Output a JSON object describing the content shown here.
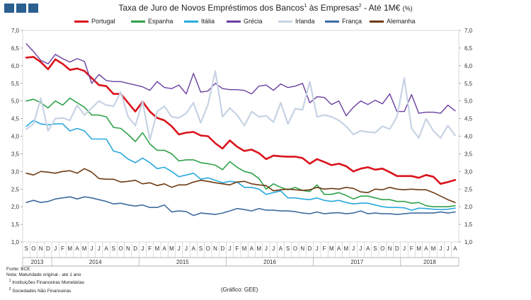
{
  "header": {
    "title_main": "Taxa de Juro de Novos Empréstimos dos Bancos",
    "title_sup1": "1",
    "title_mid": " às Empresas",
    "title_sup2": "2",
    "title_end": " - Até 1M€ ",
    "title_unit": "(%)"
  },
  "logo_color": "#2b5f8f",
  "chart_data": {
    "type": "line",
    "ylim": [
      1.0,
      7.0
    ],
    "yticks": [
      "1,0",
      "1,5",
      "2,0",
      "2,5",
      "3,0",
      "3,5",
      "4,0",
      "4,5",
      "5,0",
      "5,5",
      "6,0",
      "6,5",
      "7,0"
    ],
    "month_labels": [
      "S",
      "O",
      "N",
      "D",
      "J",
      "F",
      "M",
      "A",
      "M",
      "J",
      "J",
      "A",
      "S",
      "O",
      "N",
      "D",
      "J",
      "F",
      "M",
      "A",
      "M",
      "J",
      "J",
      "A",
      "S",
      "O",
      "N",
      "D",
      "J",
      "F",
      "M",
      "A",
      "M",
      "J",
      "J",
      "A",
      "S",
      "O",
      "N",
      "D",
      "J",
      "F",
      "M",
      "A",
      "M",
      "J",
      "J",
      "A",
      "S",
      "O",
      "N",
      "D",
      "J",
      "F",
      "M",
      "A",
      "M",
      "J",
      "J",
      "A"
    ],
    "years": [
      {
        "label": "2013",
        "start": 0,
        "end": 3
      },
      {
        "label": "2014",
        "start": 4,
        "end": 15
      },
      {
        "label": "2015",
        "start": 16,
        "end": 27
      },
      {
        "label": "2016",
        "start": 28,
        "end": 39
      },
      {
        "label": "2017",
        "start": 40,
        "end": 51
      },
      {
        "label": "2018",
        "start": 52,
        "end": 59
      }
    ],
    "series": [
      {
        "name": "Portugal",
        "color": "#d9131b",
        "width": 2.6,
        "values": [
          6.23,
          6.25,
          6.1,
          5.9,
          6.18,
          6.05,
          5.88,
          5.92,
          5.85,
          5.65,
          5.45,
          5.42,
          5.2,
          5.2,
          4.95,
          4.7,
          4.98,
          4.7,
          4.52,
          4.45,
          4.28,
          4.05,
          4.1,
          4.12,
          4.02,
          4.0,
          3.8,
          3.65,
          3.88,
          3.7,
          3.58,
          3.62,
          3.52,
          3.35,
          3.45,
          3.43,
          3.42,
          3.42,
          3.38,
          3.22,
          3.35,
          3.27,
          3.18,
          3.22,
          3.15,
          3.0,
          3.08,
          3.12,
          3.05,
          3.08,
          2.98,
          2.87,
          2.87,
          2.87,
          2.82,
          2.9,
          2.85,
          2.65,
          2.7,
          2.76
        ]
      },
      {
        "name": "Espanha",
        "color": "#2fa24a",
        "width": 1.6,
        "values": [
          5.0,
          5.05,
          4.95,
          4.8,
          5.0,
          4.88,
          5.08,
          4.95,
          4.82,
          4.6,
          4.6,
          4.55,
          4.25,
          4.22,
          4.05,
          3.85,
          4.1,
          3.78,
          3.6,
          3.6,
          3.5,
          3.3,
          3.33,
          3.33,
          3.25,
          3.22,
          3.18,
          3.05,
          3.28,
          3.12,
          3.0,
          2.95,
          2.8,
          2.5,
          2.65,
          2.55,
          2.48,
          2.55,
          2.46,
          2.43,
          2.62,
          2.35,
          2.35,
          2.4,
          2.32,
          2.22,
          2.3,
          2.3,
          2.25,
          2.2,
          2.2,
          2.15,
          2.15,
          2.1,
          2.12,
          2.03,
          2.0,
          2.0,
          2.0,
          2.03
        ]
      },
      {
        "name": "Itália",
        "color": "#29a9dc",
        "width": 1.6,
        "values": [
          4.28,
          4.45,
          4.35,
          4.32,
          4.35,
          4.35,
          4.15,
          4.22,
          4.15,
          3.92,
          3.92,
          3.92,
          3.58,
          3.52,
          3.35,
          3.25,
          3.38,
          3.25,
          3.08,
          3.12,
          3.0,
          2.85,
          2.9,
          2.95,
          2.78,
          2.82,
          2.75,
          2.68,
          2.72,
          2.7,
          2.55,
          2.55,
          2.5,
          2.35,
          2.4,
          2.45,
          2.25,
          2.25,
          2.22,
          2.2,
          2.25,
          2.18,
          2.15,
          2.18,
          2.12,
          2.08,
          2.1,
          2.1,
          2.05,
          2.0,
          1.98,
          1.98,
          1.97,
          1.9,
          1.96,
          1.95,
          1.93,
          1.92,
          1.93,
          1.96
        ]
      },
      {
        "name": "Grécia",
        "color": "#6b3fa0",
        "width": 1.4,
        "values": [
          6.62,
          6.4,
          6.15,
          6.05,
          6.32,
          6.2,
          6.1,
          6.2,
          6.12,
          5.5,
          5.75,
          5.58,
          5.55,
          5.55,
          5.5,
          5.45,
          5.4,
          5.3,
          5.55,
          5.38,
          5.35,
          5.45,
          5.2,
          5.78,
          5.25,
          5.28,
          5.5,
          5.35,
          5.32,
          5.32,
          5.3,
          5.2,
          5.42,
          5.45,
          5.3,
          5.48,
          5.38,
          5.42,
          5.5,
          4.95,
          5.12,
          5.1,
          4.9,
          5.0,
          4.58,
          4.82,
          5.0,
          4.9,
          5.02,
          4.92,
          5.2,
          4.7,
          4.7,
          5.18,
          4.65,
          4.68,
          4.68,
          4.65,
          4.88,
          4.72
        ]
      },
      {
        "name": "Irlanda",
        "color": "#c7d3e3",
        "width": 2.2,
        "values": [
          4.2,
          4.35,
          5.08,
          4.15,
          4.5,
          4.52,
          4.45,
          4.88,
          4.6,
          4.8,
          5.0,
          4.88,
          4.85,
          5.25,
          4.55,
          4.3,
          4.98,
          3.9,
          4.7,
          4.85,
          4.55,
          4.52,
          4.65,
          4.95,
          4.38,
          4.9,
          5.85,
          4.55,
          4.8,
          4.6,
          4.3,
          4.7,
          4.55,
          4.58,
          4.4,
          4.95,
          4.35,
          4.78,
          4.75,
          5.55,
          4.55,
          4.6,
          4.55,
          4.45,
          4.28,
          4.05,
          4.15,
          4.12,
          4.1,
          4.28,
          4.2,
          4.55,
          5.65,
          4.22,
          3.95,
          4.5,
          4.15,
          3.95,
          4.3,
          4.02
        ]
      },
      {
        "name": "França",
        "color": "#3e6c9e",
        "width": 1.6,
        "values": [
          2.12,
          2.18,
          2.12,
          2.15,
          2.22,
          2.25,
          2.28,
          2.22,
          2.28,
          2.25,
          2.2,
          2.15,
          2.08,
          2.1,
          2.05,
          2.02,
          2.05,
          1.98,
          1.98,
          2.05,
          1.85,
          1.88,
          1.86,
          1.75,
          1.82,
          1.8,
          1.78,
          1.82,
          1.88,
          1.95,
          1.92,
          1.88,
          1.95,
          1.9,
          1.9,
          1.88,
          1.88,
          1.86,
          1.82,
          1.8,
          1.85,
          1.8,
          1.82,
          1.83,
          1.8,
          1.82,
          1.88,
          1.8,
          1.82,
          1.8,
          1.8,
          1.78,
          1.8,
          1.82,
          1.82,
          1.82,
          1.82,
          1.85,
          1.82,
          1.85
        ]
      },
      {
        "name": "Alemanha",
        "color": "#6e3b12",
        "width": 1.6,
        "values": [
          2.95,
          2.9,
          3.0,
          2.98,
          2.95,
          3.0,
          3.02,
          2.95,
          3.08,
          2.98,
          2.8,
          2.78,
          2.78,
          2.7,
          2.72,
          2.75,
          2.65,
          2.68,
          2.6,
          2.65,
          2.55,
          2.62,
          2.62,
          2.7,
          2.75,
          2.72,
          2.68,
          2.65,
          2.62,
          2.7,
          2.72,
          2.65,
          2.62,
          2.6,
          2.45,
          2.48,
          2.5,
          2.48,
          2.46,
          2.48,
          2.55,
          2.5,
          2.52,
          2.5,
          2.55,
          2.52,
          2.42,
          2.4,
          2.5,
          2.48,
          2.55,
          2.5,
          2.48,
          2.5,
          2.48,
          2.48,
          2.4,
          2.3,
          2.2,
          2.12
        ]
      }
    ]
  },
  "footer": {
    "source": "Fonte: BCE",
    "note": "Nota: Maturidade original - até 1 ano",
    "fn1_num": "1",
    "fn1_text": " Instituições Financeiras Monetárias",
    "fn2_num": "2",
    "fn2_text": " Sociedades Não Financeiras",
    "credit": "(Gráfico: GEE)"
  }
}
